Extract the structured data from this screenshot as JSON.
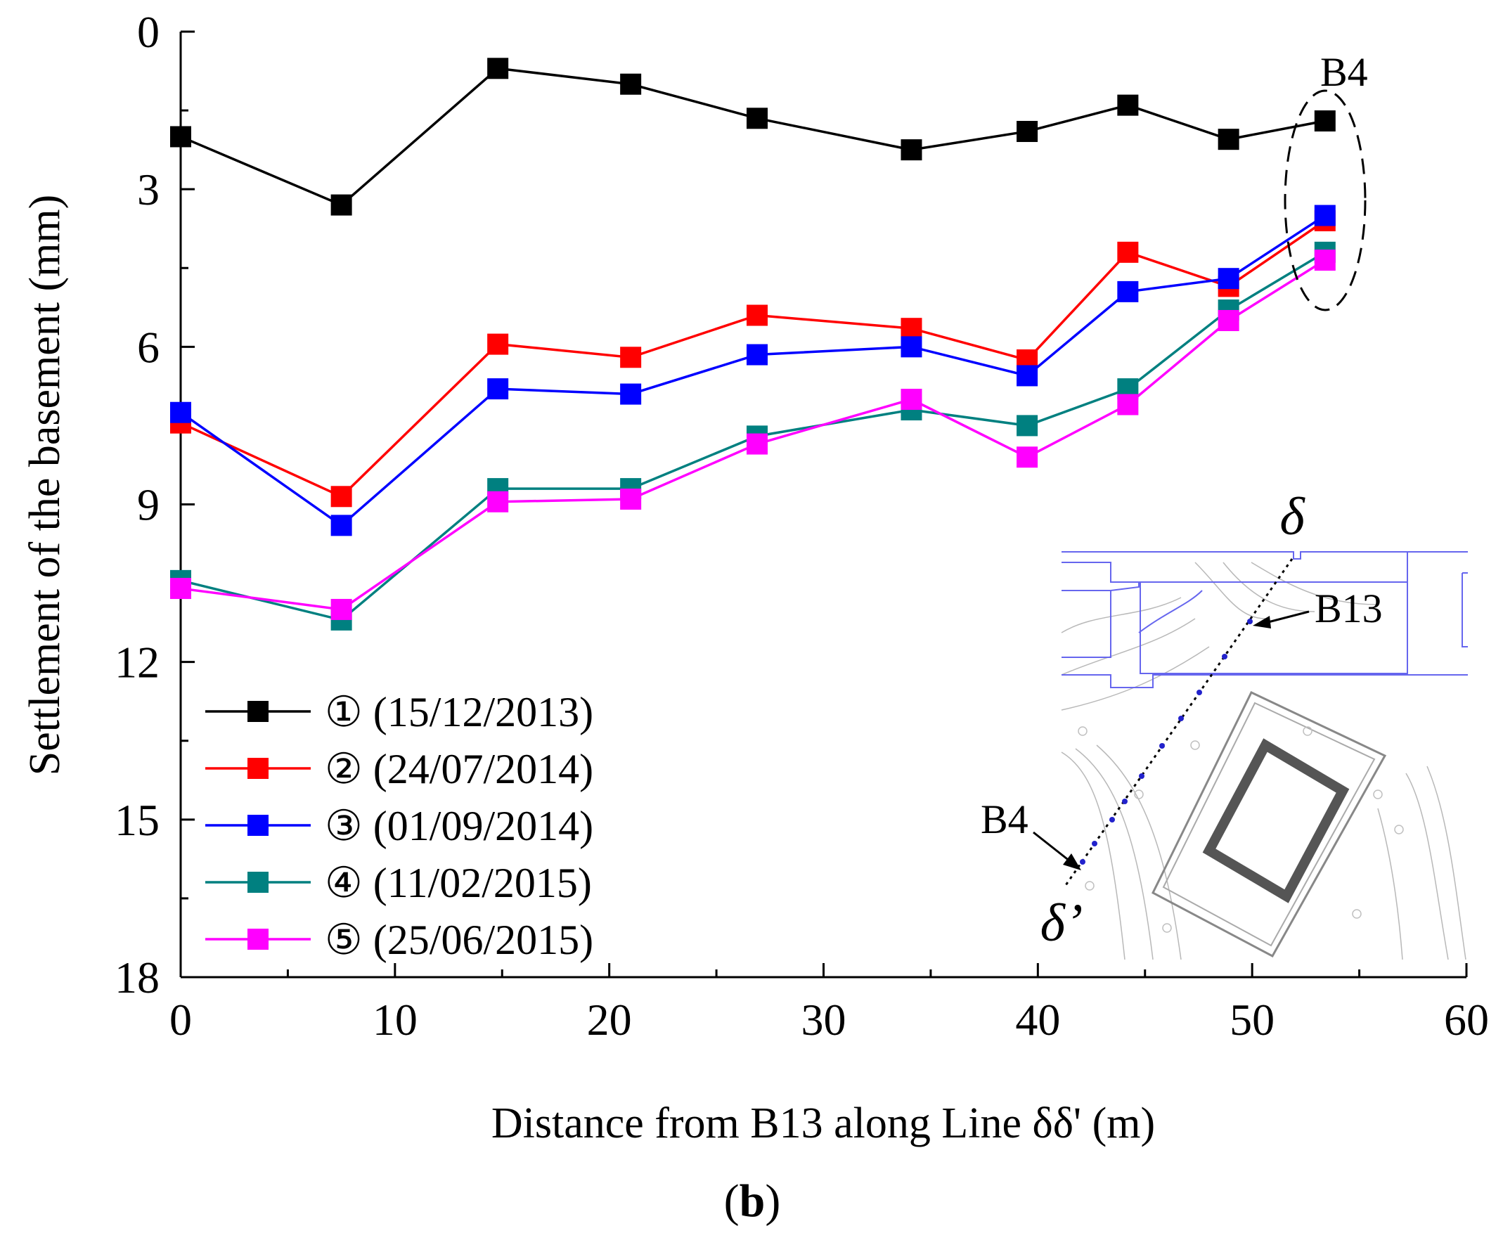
{
  "chart_data": {
    "type": "line",
    "title": "",
    "xlabel": "Distance from B13 along Line δδ' (m)",
    "ylabel": "Settlement of the basement (mm)",
    "xlim": [
      0,
      60
    ],
    "ylim": [
      0,
      18
    ],
    "y_inverted": true,
    "x_ticks": [
      "0",
      "10",
      "20",
      "30",
      "40",
      "50",
      "60"
    ],
    "y_ticks": [
      "0",
      "3",
      "6",
      "9",
      "12",
      "15",
      "18"
    ],
    "x": [
      0,
      7.5,
      14.8,
      21,
      26.9,
      34.1,
      39.5,
      44.2,
      48.9,
      53.4
    ],
    "series": [
      {
        "name": "① (15/12/2013)",
        "color": "#000000",
        "marker": "square",
        "values": [
          2.0,
          3.3,
          0.7,
          1.0,
          1.65,
          2.25,
          1.9,
          1.4,
          2.05,
          1.7
        ]
      },
      {
        "name": "② (24/07/2014)",
        "color": "#ff0000",
        "marker": "square",
        "values": [
          7.45,
          8.85,
          5.95,
          6.2,
          5.4,
          5.65,
          6.25,
          4.2,
          4.85,
          3.6
        ]
      },
      {
        "name": "③ (01/09/2014)",
        "color": "#0000ff",
        "marker": "square",
        "values": [
          7.25,
          9.4,
          6.8,
          6.9,
          6.15,
          6.0,
          6.55,
          4.95,
          4.7,
          3.5
        ]
      },
      {
        "name": "④ (11/02/2015)",
        "color": "#008080",
        "marker": "square",
        "values": [
          10.45,
          11.2,
          8.7,
          8.7,
          7.7,
          7.2,
          7.5,
          6.8,
          5.3,
          4.2
        ]
      },
      {
        "name": "⑤ (25/06/2015)",
        "color": "#ff00ff",
        "marker": "square",
        "values": [
          10.6,
          11.0,
          8.95,
          8.9,
          7.85,
          7.0,
          8.1,
          7.1,
          5.5,
          4.35
        ]
      }
    ],
    "legend_position": "bottom-left",
    "annotations": [
      {
        "text": "B4",
        "note": "dashed ellipse around end points"
      }
    ],
    "inset": {
      "description_labels": [
        "δ",
        "B13",
        "B4",
        "δ’"
      ]
    },
    "panel_label": "(b)"
  },
  "inset_labels": {
    "delta": "δ",
    "delta_prime": "δ’",
    "b13": "B13",
    "b4": "B4"
  },
  "annotation_b4": "B4",
  "panel": {
    "label_open": "(",
    "label_letter": "b",
    "label_close": ")"
  }
}
